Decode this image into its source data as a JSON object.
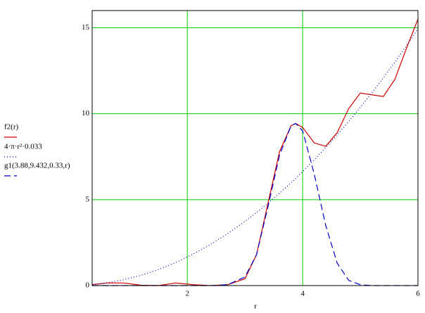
{
  "chart_data": {
    "type": "line",
    "x_label": "r",
    "x": [
      0.35,
      0.6,
      0.9,
      1.2,
      1.5,
      1.8,
      2.1,
      2.4,
      2.7,
      3.0,
      3.2,
      3.4,
      3.6,
      3.8,
      3.88,
      4.0,
      4.2,
      4.4,
      4.6,
      4.8,
      5.0,
      5.2,
      5.4,
      5.6,
      5.8,
      6.0
    ],
    "series": [
      {
        "name": "f2(r)",
        "color": "#cc0000",
        "style": "solid",
        "values": [
          0.05,
          0.15,
          0.15,
          0.02,
          0.0,
          0.15,
          0.05,
          0.0,
          0.05,
          0.4,
          1.8,
          4.8,
          7.8,
          9.3,
          9.43,
          9.2,
          8.3,
          8.1,
          8.9,
          10.3,
          11.2,
          11.1,
          11.0,
          12.0,
          13.8,
          15.5
        ]
      },
      {
        "name": "4·π·r²·0.033",
        "color": "#0000cc",
        "style": "dotted",
        "values": [
          0.05,
          0.15,
          0.34,
          0.6,
          0.93,
          1.34,
          1.83,
          2.39,
          3.02,
          3.73,
          4.25,
          4.79,
          5.37,
          5.99,
          6.24,
          6.64,
          7.31,
          8.03,
          8.77,
          9.55,
          10.37,
          11.21,
          12.09,
          13.0,
          13.95,
          14.93
        ]
      },
      {
        "name": "g1(3.88,9.432,0.33,r)",
        "color": "#0000cc",
        "style": "dashed",
        "values": [
          0,
          0,
          0,
          0,
          0,
          0,
          0,
          0,
          0.05,
          0.5,
          1.8,
          4.6,
          7.6,
          9.3,
          9.43,
          9.0,
          6.5,
          3.5,
          1.3,
          0.3,
          0.05,
          0,
          0,
          0,
          0,
          0
        ]
      }
    ],
    "xlim": [
      0.35,
      6
    ],
    "ylim": [
      0,
      16
    ],
    "xticks": [
      2,
      4,
      6
    ],
    "yticks": [
      0,
      5,
      10,
      15
    ],
    "grid": true,
    "grid_color": "#00cc00"
  }
}
